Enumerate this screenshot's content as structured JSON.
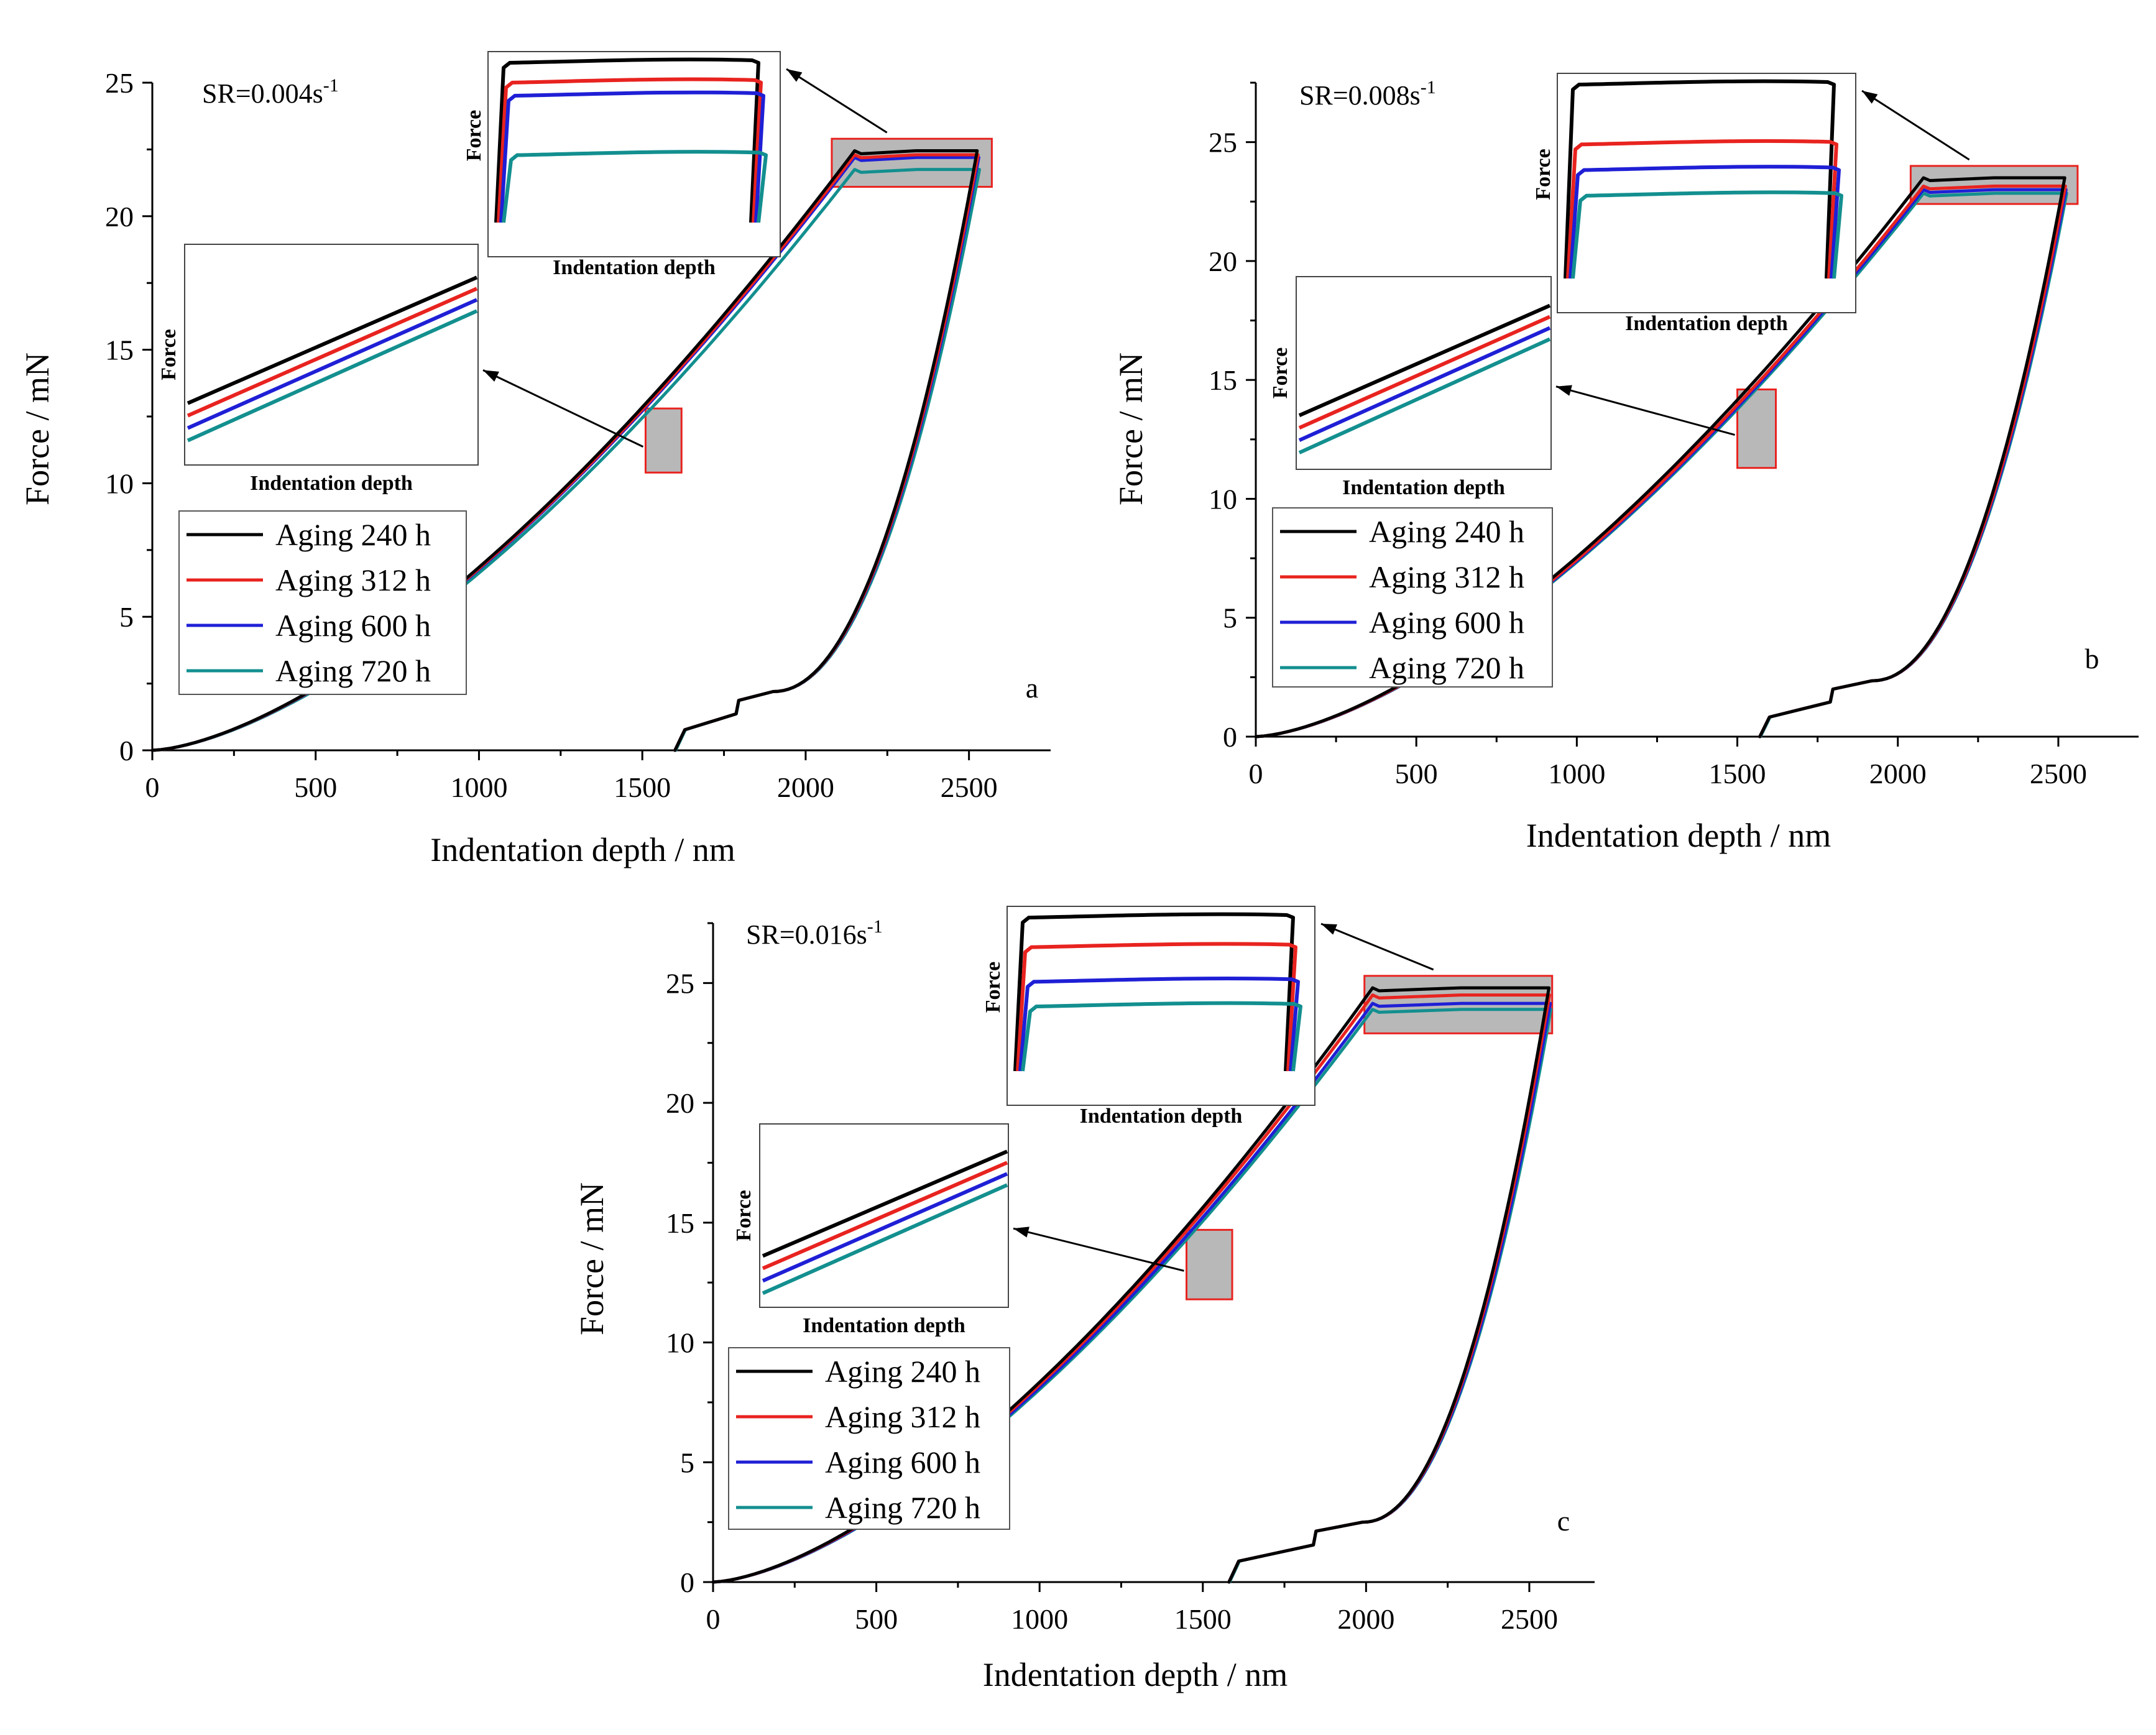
{
  "chart_data": [
    {
      "type": "line",
      "panel": "a",
      "strain_rate_label": "SR=0.004s",
      "strain_rate_exponent": "-1",
      "xlabel": "Indentation depth / nm",
      "ylabel": "Force / mN",
      "xlim": [
        0,
        2750
      ],
      "ylim": [
        0,
        25
      ],
      "xticks": [
        0,
        500,
        1000,
        1500,
        2000,
        2500
      ],
      "yticks": [
        0,
        5,
        10,
        15,
        20,
        25
      ],
      "legend": [
        "Aging 240 h",
        "Aging 312 h",
        "Aging 600 h",
        "Aging 720 h"
      ],
      "loading_curve": {
        "h_max": 2150,
        "exponent": 1.55
      },
      "series": [
        {
          "name": "Aging 240 h",
          "color": "#000000",
          "max_force": 22.45,
          "hold_end_depth": 2525,
          "unload_start_depth": 1600,
          "kink_depth": 1900,
          "kink_force": 2.2
        },
        {
          "name": "Aging 312 h",
          "color": "#e8231f",
          "max_force": 22.3,
          "hold_end_depth": 2528,
          "unload_start_depth": 1600,
          "kink_depth": 1900,
          "kink_force": 2.2
        },
        {
          "name": "Aging 600 h",
          "color": "#1f1fd6",
          "max_force": 22.2,
          "hold_end_depth": 2530,
          "unload_start_depth": 1600,
          "kink_depth": 1900,
          "kink_force": 2.2
        },
        {
          "name": "Aging 720 h",
          "color": "#138f8f",
          "max_force": 21.75,
          "hold_end_depth": 2532,
          "unload_start_depth": 1602,
          "kink_depth": 1900,
          "kink_force": 2.2
        }
      ],
      "highlight_boxes": [
        {
          "x": [
            2080,
            2570
          ],
          "y": [
            21.1,
            22.9
          ]
        },
        {
          "x": [
            1510,
            1620
          ],
          "y": [
            10.4,
            12.8
          ]
        }
      ],
      "insets": [
        {
          "kind": "hold",
          "xlabel": "Indentation depth",
          "ylabel": "Force"
        },
        {
          "kind": "loading",
          "xlabel": "Indentation depth",
          "ylabel": "Force"
        }
      ],
      "letter": "a"
    },
    {
      "type": "line",
      "panel": "b",
      "strain_rate_label": "SR=0.008s",
      "strain_rate_exponent": "-1",
      "xlabel": "Indentation depth / nm",
      "ylabel": "Force / mN",
      "xlim": [
        0,
        2750
      ],
      "ylim": [
        0,
        27.5
      ],
      "xticks": [
        0,
        500,
        1000,
        1500,
        2000,
        2500
      ],
      "yticks": [
        0,
        5,
        10,
        15,
        20,
        25
      ],
      "legend": [
        "Aging 240 h",
        "Aging 312 h",
        "Aging 600 h",
        "Aging 720 h"
      ],
      "loading_curve": {
        "h_max": 2080,
        "exponent": 1.55
      },
      "series": [
        {
          "name": "Aging 240 h",
          "color": "#000000",
          "max_force": 23.5,
          "hold_end_depth": 2520,
          "unload_start_depth": 1570,
          "kink_depth": 1920,
          "kink_force": 2.35
        },
        {
          "name": "Aging 312 h",
          "color": "#e8231f",
          "max_force": 23.15,
          "hold_end_depth": 2522,
          "unload_start_depth": 1570,
          "kink_depth": 1920,
          "kink_force": 2.35
        },
        {
          "name": "Aging 600 h",
          "color": "#1f1fd6",
          "max_force": 23.0,
          "hold_end_depth": 2524,
          "unload_start_depth": 1570,
          "kink_depth": 1920,
          "kink_force": 2.35
        },
        {
          "name": "Aging 720 h",
          "color": "#138f8f",
          "max_force": 22.85,
          "hold_end_depth": 2526,
          "unload_start_depth": 1572,
          "kink_depth": 1920,
          "kink_force": 2.35
        }
      ],
      "highlight_boxes": [
        {
          "x": [
            2040,
            2560
          ],
          "y": [
            22.4,
            24.0
          ]
        },
        {
          "x": [
            1500,
            1620
          ],
          "y": [
            11.3,
            14.6
          ]
        }
      ],
      "insets": [
        {
          "kind": "hold",
          "xlabel": "Indentation depth",
          "ylabel": "Force"
        },
        {
          "kind": "loading",
          "xlabel": "Indentation depth",
          "ylabel": "Force"
        }
      ],
      "letter": "b"
    },
    {
      "type": "line",
      "panel": "c",
      "strain_rate_label": "SR=0.016s",
      "strain_rate_exponent": "-1",
      "xlabel": "Indentation depth / nm",
      "ylabel": "Force / mN",
      "xlim": [
        0,
        2700
      ],
      "ylim": [
        0,
        27.5
      ],
      "xticks": [
        0,
        500,
        1000,
        1500,
        2000,
        2500
      ],
      "yticks": [
        0,
        5,
        10,
        15,
        20,
        25
      ],
      "legend": [
        "Aging 240 h",
        "Aging 312 h",
        "Aging 600 h",
        "Aging 720 h"
      ],
      "loading_curve": {
        "h_max": 2020,
        "exponent": 1.55
      },
      "series": [
        {
          "name": "Aging 240 h",
          "color": "#000000",
          "max_force": 24.8,
          "hold_end_depth": 2560,
          "unload_start_depth": 1580,
          "kink_depth": 1990,
          "kink_force": 2.5
        },
        {
          "name": "Aging 312 h",
          "color": "#e8231f",
          "max_force": 24.5,
          "hold_end_depth": 2562,
          "unload_start_depth": 1580,
          "kink_depth": 1990,
          "kink_force": 2.5
        },
        {
          "name": "Aging 600 h",
          "color": "#1f1fd6",
          "max_force": 24.15,
          "hold_end_depth": 2564,
          "unload_start_depth": 1580,
          "kink_depth": 1990,
          "kink_force": 2.5
        },
        {
          "name": "Aging 720 h",
          "color": "#138f8f",
          "max_force": 23.9,
          "hold_end_depth": 2566,
          "unload_start_depth": 1582,
          "kink_depth": 1990,
          "kink_force": 2.5
        }
      ],
      "highlight_boxes": [
        {
          "x": [
            1995,
            2570
          ],
          "y": [
            22.9,
            25.3
          ]
        },
        {
          "x": [
            1450,
            1590
          ],
          "y": [
            11.8,
            14.7
          ]
        }
      ],
      "insets": [
        {
          "kind": "hold",
          "xlabel": "Indentation depth",
          "ylabel": "Force"
        },
        {
          "kind": "loading",
          "xlabel": "Indentation depth",
          "ylabel": "Force"
        }
      ],
      "letter": "c"
    }
  ]
}
